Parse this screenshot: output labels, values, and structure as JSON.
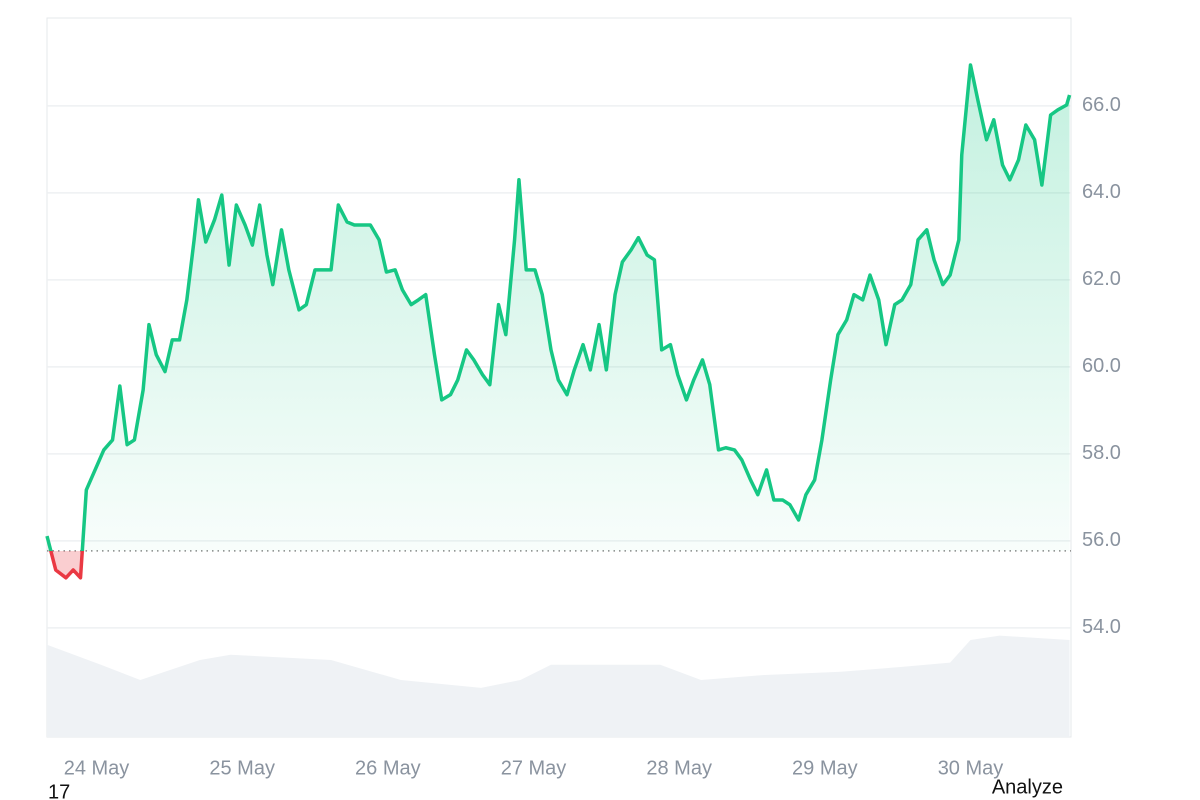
{
  "chart_data": {
    "type": "line",
    "x": [
      23.66,
      23.72,
      23.79,
      23.84,
      23.89,
      23.93,
      23.99,
      24.05,
      24.11,
      24.16,
      24.21,
      24.26,
      24.32,
      24.36,
      24.41,
      24.47,
      24.52,
      24.57,
      24.62,
      24.67,
      24.7,
      24.75,
      24.81,
      24.86,
      24.91,
      24.96,
      25.02,
      25.07,
      25.12,
      25.17,
      25.21,
      25.27,
      25.32,
      25.39,
      25.44,
      25.5,
      25.55,
      25.61,
      25.66,
      25.72,
      25.77,
      25.83,
      25.88,
      25.94,
      25.99,
      26.05,
      26.1,
      26.16,
      26.21,
      26.26,
      26.32,
      26.37,
      26.43,
      26.48,
      26.54,
      26.59,
      26.65,
      26.7,
      26.76,
      26.81,
      26.87,
      26.9,
      26.95,
      27.01,
      27.06,
      27.12,
      27.17,
      27.23,
      27.28,
      27.34,
      27.39,
      27.45,
      27.5,
      27.56,
      27.61,
      27.67,
      27.72,
      27.78,
      27.83,
      27.88,
      27.94,
      27.99,
      28.05,
      28.1,
      28.16,
      28.21,
      28.27,
      28.32,
      28.38,
      28.43,
      28.49,
      28.54,
      28.6,
      28.65,
      28.71,
      28.76,
      28.82,
      28.87,
      28.93,
      28.98,
      29.04,
      29.09,
      29.15,
      29.2,
      29.26,
      29.31,
      29.37,
      29.42,
      29.48,
      29.53,
      29.59,
      29.64,
      29.7,
      29.75,
      29.81,
      29.86,
      29.92,
      29.94,
      30.0,
      30.05,
      30.11,
      30.16,
      30.22,
      30.27,
      30.33,
      30.38,
      30.44,
      30.49,
      30.55,
      30.6,
      30.66,
      30.68
    ],
    "values": [
      56.11,
      55.33,
      55.15,
      55.33,
      55.15,
      57.17,
      57.63,
      58.09,
      58.32,
      59.56,
      58.21,
      58.32,
      59.47,
      60.97,
      60.28,
      59.89,
      60.62,
      60.62,
      61.54,
      62.92,
      63.84,
      62.87,
      63.38,
      63.95,
      62.34,
      63.72,
      63.26,
      62.8,
      63.72,
      62.57,
      61.89,
      63.15,
      62.23,
      61.31,
      61.43,
      62.23,
      62.23,
      62.23,
      63.72,
      63.33,
      63.26,
      63.26,
      63.26,
      62.92,
      62.18,
      62.23,
      61.77,
      61.43,
      61.54,
      61.66,
      60.28,
      59.24,
      59.36,
      59.7,
      60.39,
      60.16,
      59.82,
      59.59,
      61.43,
      60.74,
      62.92,
      64.3,
      62.23,
      62.23,
      61.66,
      60.39,
      59.7,
      59.36,
      59.93,
      60.51,
      59.93,
      60.97,
      59.93,
      61.66,
      62.41,
      62.69,
      62.97,
      62.57,
      62.46,
      60.39,
      60.51,
      59.82,
      59.24,
      59.7,
      60.16,
      59.59,
      58.09,
      58.14,
      58.09,
      57.86,
      57.4,
      57.06,
      57.63,
      56.94,
      56.94,
      56.83,
      56.48,
      57.06,
      57.4,
      58.32,
      59.7,
      60.74,
      61.08,
      61.66,
      61.54,
      62.11,
      61.54,
      60.51,
      61.43,
      61.54,
      61.89,
      62.92,
      63.15,
      62.46,
      61.89,
      62.11,
      62.92,
      64.87,
      66.94,
      66.14,
      65.22,
      65.68,
      64.64,
      64.3,
      64.76,
      65.56,
      65.22,
      64.18,
      65.79,
      65.91,
      66.02,
      66.25
    ],
    "baseline": 55.77,
    "up_color": "#16c784",
    "down_color": "#ea3943",
    "volume": {
      "color": "#eff2f5",
      "x": [
        23.66,
        24.03,
        24.3,
        24.71,
        24.92,
        25.61,
        26.09,
        26.64,
        26.91,
        27.12,
        27.87,
        28.15,
        28.56,
        29.11,
        29.52,
        29.86,
        30.0,
        30.2,
        30.68
      ],
      "values": [
        53.61,
        53.15,
        52.8,
        53.26,
        53.38,
        53.26,
        52.8,
        52.62,
        52.8,
        53.15,
        53.15,
        52.8,
        52.91,
        52.99,
        53.1,
        53.2,
        53.72,
        53.82,
        53.72
      ]
    },
    "xlim": [
      23.66,
      30.69
    ],
    "ylim": [
      51.49,
      68.02
    ],
    "xticks": [
      {
        "value": 24,
        "label": "24 May"
      },
      {
        "value": 25,
        "label": "25 May"
      },
      {
        "value": 26,
        "label": "26 May"
      },
      {
        "value": 27,
        "label": "27 May"
      },
      {
        "value": 28,
        "label": "28 May"
      },
      {
        "value": 29,
        "label": "29 May"
      },
      {
        "value": 30,
        "label": "30 May"
      }
    ],
    "yticks": [
      {
        "value": 54,
        "label": "54.0"
      },
      {
        "value": 56,
        "label": "56.0"
      },
      {
        "value": 58,
        "label": "58.0"
      },
      {
        "value": 60,
        "label": "60.0"
      },
      {
        "value": 62,
        "label": "62.0"
      },
      {
        "value": 64,
        "label": "64.0"
      },
      {
        "value": 66,
        "label": "66.0"
      }
    ],
    "grid": true
  },
  "page": {
    "corner_text": "17",
    "button": "Analyze"
  }
}
